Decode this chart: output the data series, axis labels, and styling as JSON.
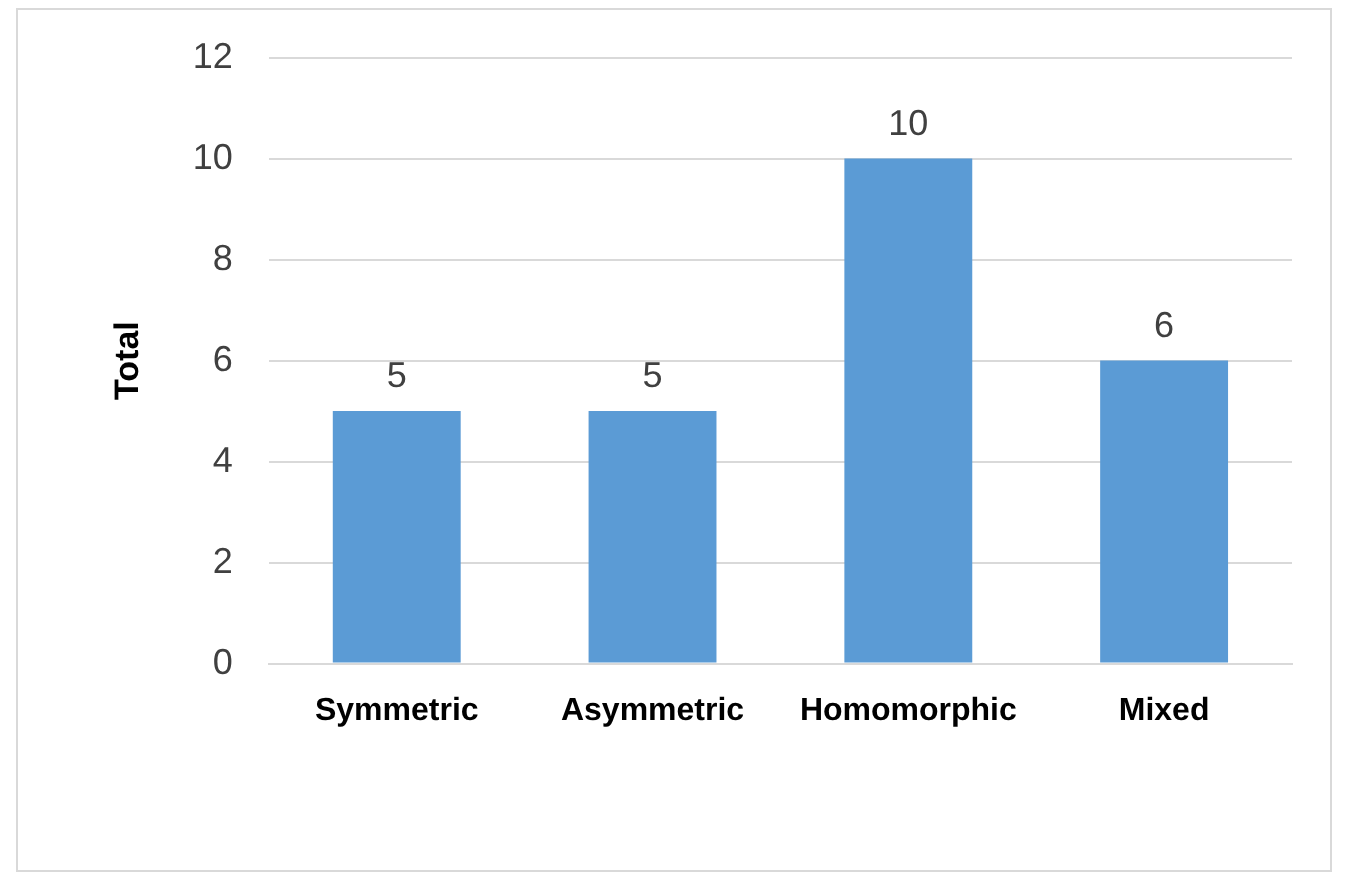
{
  "chart_data": {
    "type": "bar",
    "ylabel": "Total",
    "categories": [
      "Symmetric",
      "Asymmetric",
      "Homomorphic",
      "Mixed"
    ],
    "values": [
      5,
      5,
      10,
      6
    ],
    "color": "#5b9bd5",
    "ylim": [
      0,
      12
    ],
    "yticks": [
      0,
      2,
      4,
      6,
      8,
      10,
      12
    ],
    "grid": "y",
    "data_labels": true,
    "legend": false
  }
}
